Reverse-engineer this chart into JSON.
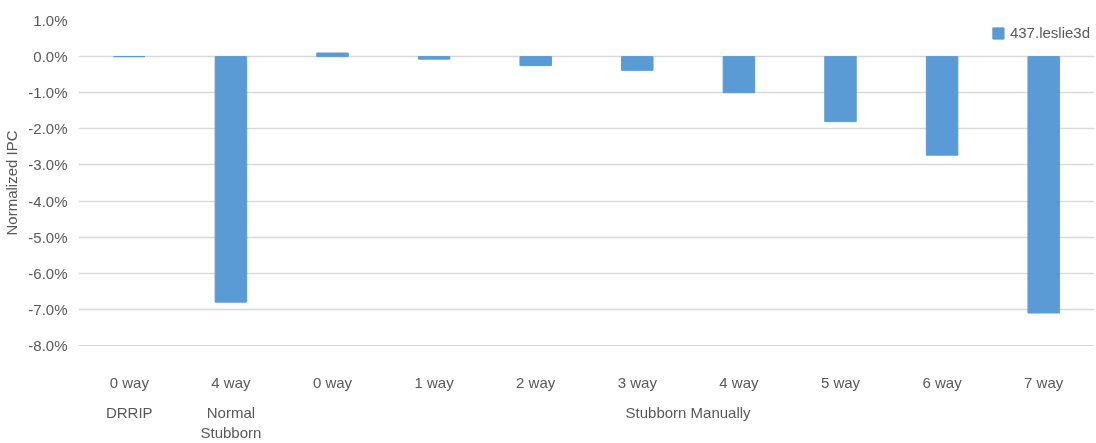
{
  "chart_data": {
    "type": "bar",
    "ylabel": "Normalized IPC",
    "categories": [
      "0 way",
      "4 way",
      "0 way",
      "1 way",
      "2 way",
      "3 way",
      "4 way",
      "5 way",
      "6 way",
      "7 way"
    ],
    "series": [
      {
        "name": "437.leslie3d",
        "color": "#5b9bd5",
        "values": [
          0,
          -6.8,
          0.1,
          -0.07,
          -0.25,
          -0.38,
          -1.0,
          -1.8,
          -2.73,
          -7.1
        ]
      }
    ],
    "ylim": [
      -8,
      1
    ],
    "yticks": [
      {
        "value": -8,
        "label": "-8.0%"
      },
      {
        "value": -7,
        "label": "-7.0%"
      },
      {
        "value": -6,
        "label": "-6.0%"
      },
      {
        "value": -5,
        "label": "-5.0%"
      },
      {
        "value": -4,
        "label": "-4.0%"
      },
      {
        "value": -3,
        "label": "-3.0%"
      },
      {
        "value": -2,
        "label": "-2.0%"
      },
      {
        "value": -1,
        "label": "-1.0%"
      },
      {
        "value": 0,
        "label": "0.0%"
      },
      {
        "value": 1,
        "label": "1.0%"
      }
    ],
    "annotations": [
      "DRRIP",
      "Normal\nStubborn",
      "Stubborn Manually"
    ],
    "grid": "y",
    "legend": "top right"
  }
}
